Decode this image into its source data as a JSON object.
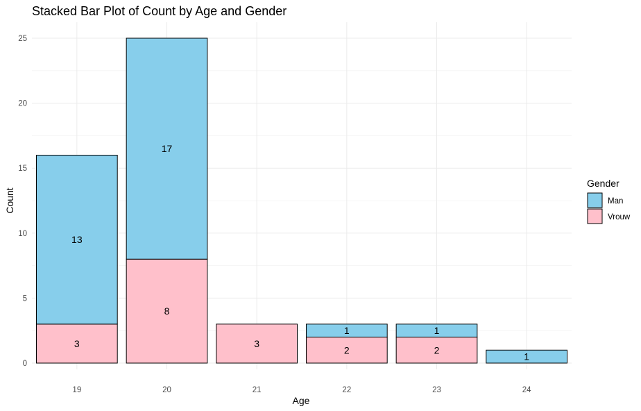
{
  "chart_data": {
    "type": "bar",
    "stacked": true,
    "title": "Stacked Bar Plot of Count by Age and Gender",
    "xlabel": "Age",
    "ylabel": "Count",
    "categories": [
      "19",
      "20",
      "21",
      "22",
      "23",
      "24"
    ],
    "series": [
      {
        "name": "Vrouw",
        "color": "#FFC0CB",
        "values": [
          3,
          8,
          3,
          2,
          2,
          0
        ]
      },
      {
        "name": "Man",
        "color": "#87CEEB",
        "values": [
          13,
          17,
          0,
          1,
          1,
          1
        ]
      }
    ],
    "ylim": [
      0,
      25
    ],
    "yticks": [
      0,
      5,
      10,
      15,
      20,
      25
    ],
    "grid": true,
    "legend": {
      "title": "Gender",
      "position": "right",
      "order": [
        "Man",
        "Vrouw"
      ]
    }
  }
}
